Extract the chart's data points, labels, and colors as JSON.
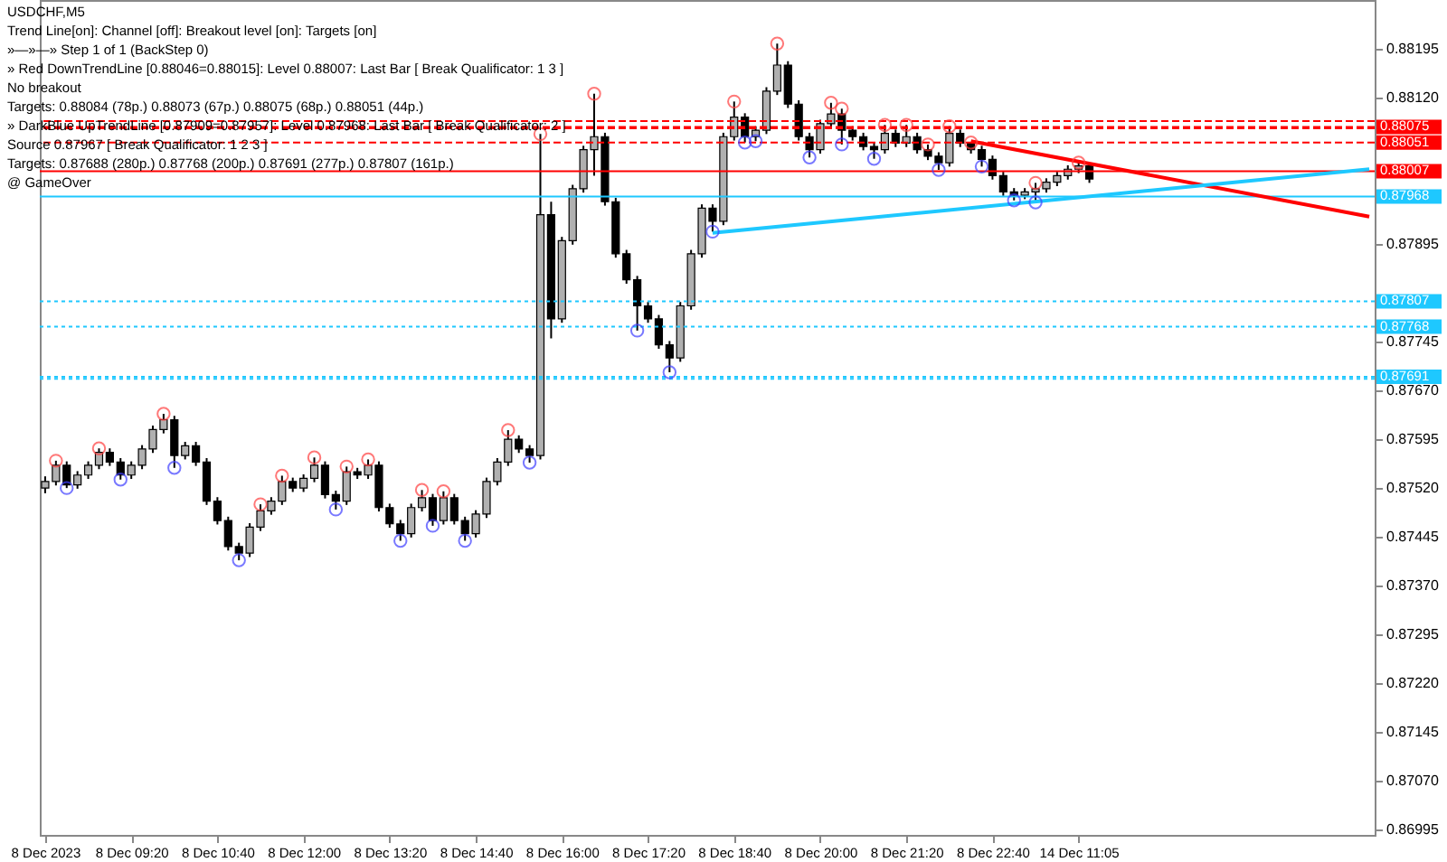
{
  "chart_data": {
    "type": "candlestick",
    "title": "USDCHF,M5",
    "annotations": [
      "Trend Line[on]: Channel [off]: Breakout level [on]: Targets [on]",
      "»—»—» Step 1 of 1 (BackStep 0)",
      "» Red DownTrendLine [0.88046=0.88015]: Level 0.88007: Last Bar [ Break Qualificator: 1 3 ]",
      "No breakout",
      "Targets: 0.88084 (78p.) 0.88073 (67p.) 0.88075 (68p.) 0.88051 (44p.)",
      "» DarkBlue UpTrendLine [0.87909=0.87957]: Level 0.87968: Last Bar [ Break Qualificator: 2 ]",
      "Source 0.87967 [ Break Qualificator: 1 2 3 ]",
      "Targets: 0.87688 (280p.) 0.87768 (200p.) 0.87691 (277p.) 0.87807 (161p.)",
      "@ GameOver"
    ],
    "categories": [
      "8 Dec 2023",
      null,
      null,
      null,
      null,
      null,
      null,
      null,
      "8 Dec 09:20",
      null,
      null,
      null,
      null,
      null,
      null,
      null,
      "8 Dec 10:40",
      null,
      null,
      null,
      null,
      null,
      null,
      null,
      "8 Dec 12:00",
      null,
      null,
      null,
      null,
      null,
      null,
      null,
      "8 Dec 13:20",
      null,
      null,
      null,
      null,
      null,
      null,
      null,
      "8 Dec 14:40",
      null,
      null,
      null,
      null,
      null,
      null,
      null,
      "8 Dec 16:00",
      null,
      null,
      null,
      null,
      null,
      null,
      null,
      "8 Dec 17:20",
      null,
      null,
      null,
      null,
      null,
      null,
      null,
      "8 Dec 18:40",
      null,
      null,
      null,
      null,
      null,
      null,
      null,
      "8 Dec 20:00",
      null,
      null,
      null,
      null,
      null,
      null,
      null,
      "8 Dec 21:20",
      null,
      null,
      null,
      null,
      null,
      null,
      null,
      "8 Dec 22:40",
      null,
      null,
      null,
      null,
      null,
      null,
      null,
      "14 Dec 11:05",
      null,
      null,
      null,
      null,
      null,
      null,
      null,
      null,
      null,
      null,
      null,
      null,
      null,
      null,
      null,
      null,
      null,
      null,
      null,
      null,
      null,
      null,
      null,
      null,
      null,
      null,
      null
    ],
    "ohlc": [
      [
        0.8752,
        0.87538,
        0.87512,
        0.8753
      ],
      [
        0.8753,
        0.87562,
        0.87524,
        0.87555
      ],
      [
        0.87555,
        0.87561,
        0.8752,
        0.87525
      ],
      [
        0.87525,
        0.87546,
        0.87519,
        0.8754
      ],
      [
        0.8754,
        0.87561,
        0.87534,
        0.87555
      ],
      [
        0.87555,
        0.87581,
        0.87549,
        0.87575
      ],
      [
        0.87575,
        0.87581,
        0.87554,
        0.8756
      ],
      [
        0.8756,
        0.87566,
        0.87533,
        0.8754
      ],
      [
        0.8754,
        0.87561,
        0.87534,
        0.87555
      ],
      [
        0.87555,
        0.87586,
        0.87549,
        0.8758
      ],
      [
        0.8758,
        0.87616,
        0.87574,
        0.8761
      ],
      [
        0.8761,
        0.87634,
        0.87604,
        0.87625
      ],
      [
        0.87625,
        0.87631,
        0.87551,
        0.8757
      ],
      [
        0.8757,
        0.87591,
        0.87564,
        0.87585
      ],
      [
        0.87585,
        0.87591,
        0.87554,
        0.8756
      ],
      [
        0.8756,
        0.87566,
        0.87494,
        0.875
      ],
      [
        0.875,
        0.87506,
        0.87464,
        0.8747
      ],
      [
        0.8747,
        0.87476,
        0.87424,
        0.8743
      ],
      [
        0.8743,
        0.87436,
        0.87409,
        0.8742
      ],
      [
        0.8742,
        0.87466,
        0.87414,
        0.8746
      ],
      [
        0.8746,
        0.87495,
        0.87454,
        0.87485
      ],
      [
        0.87485,
        0.87506,
        0.87479,
        0.875
      ],
      [
        0.875,
        0.87539,
        0.87494,
        0.8753
      ],
      [
        0.8753,
        0.87536,
        0.87514,
        0.8752
      ],
      [
        0.8752,
        0.87541,
        0.87514,
        0.87535
      ],
      [
        0.87535,
        0.87567,
        0.87529,
        0.87555
      ],
      [
        0.87555,
        0.87561,
        0.87504,
        0.8751
      ],
      [
        0.8751,
        0.87516,
        0.87487,
        0.875
      ],
      [
        0.875,
        0.87553,
        0.87494,
        0.87545
      ],
      [
        0.87545,
        0.87551,
        0.87534,
        0.8754
      ],
      [
        0.8754,
        0.87564,
        0.87534,
        0.87555
      ],
      [
        0.87555,
        0.87561,
        0.87484,
        0.8749
      ],
      [
        0.8749,
        0.87496,
        0.87459,
        0.87465
      ],
      [
        0.87465,
        0.87471,
        0.87439,
        0.8745
      ],
      [
        0.8745,
        0.87496,
        0.87444,
        0.8749
      ],
      [
        0.8749,
        0.87517,
        0.87484,
        0.87505
      ],
      [
        0.87505,
        0.87511,
        0.87462,
        0.8747
      ],
      [
        0.8747,
        0.87515,
        0.87464,
        0.87505
      ],
      [
        0.87505,
        0.87511,
        0.87464,
        0.8747
      ],
      [
        0.8747,
        0.87476,
        0.87439,
        0.8745
      ],
      [
        0.8745,
        0.87486,
        0.87444,
        0.8748
      ],
      [
        0.8748,
        0.87536,
        0.87474,
        0.8753
      ],
      [
        0.8753,
        0.87566,
        0.87524,
        0.8756
      ],
      [
        0.8756,
        0.87609,
        0.87554,
        0.87595
      ],
      [
        0.87595,
        0.87601,
        0.87574,
        0.8758
      ],
      [
        0.8758,
        0.87586,
        0.87559,
        0.8757
      ],
      [
        0.8757,
        0.88064,
        0.87564,
        0.8794
      ],
      [
        0.8794,
        0.8796,
        0.8775,
        0.8778
      ],
      [
        0.8778,
        0.87906,
        0.87774,
        0.879
      ],
      [
        0.879,
        0.87986,
        0.87894,
        0.8798
      ],
      [
        0.8798,
        0.88046,
        0.87974,
        0.8804
      ],
      [
        0.8804,
        0.88126,
        0.88,
        0.8806
      ],
      [
        0.8806,
        0.88066,
        0.87954,
        0.8796
      ],
      [
        0.8796,
        0.87966,
        0.87874,
        0.8788
      ],
      [
        0.8788,
        0.87886,
        0.87834,
        0.8784
      ],
      [
        0.8784,
        0.87846,
        0.87762,
        0.878
      ],
      [
        0.878,
        0.87806,
        0.87774,
        0.8778
      ],
      [
        0.8778,
        0.87786,
        0.87734,
        0.8774
      ],
      [
        0.8774,
        0.87746,
        0.87698,
        0.8772
      ],
      [
        0.8772,
        0.87806,
        0.87714,
        0.878
      ],
      [
        0.878,
        0.87886,
        0.87794,
        0.8788
      ],
      [
        0.8788,
        0.87956,
        0.87874,
        0.8795
      ],
      [
        0.8795,
        0.87956,
        0.87914,
        0.8793
      ],
      [
        0.8793,
        0.88066,
        0.87924,
        0.8806
      ],
      [
        0.8806,
        0.88114,
        0.88054,
        0.8809
      ],
      [
        0.8809,
        0.88096,
        0.88051,
        0.8806
      ],
      [
        0.8806,
        0.88076,
        0.88053,
        0.8807
      ],
      [
        0.8807,
        0.88136,
        0.88064,
        0.8813
      ],
      [
        0.8813,
        0.88203,
        0.88124,
        0.8817
      ],
      [
        0.8817,
        0.88176,
        0.88104,
        0.8811
      ],
      [
        0.8811,
        0.88116,
        0.88054,
        0.8806
      ],
      [
        0.8806,
        0.88066,
        0.88028,
        0.8804
      ],
      [
        0.8804,
        0.88086,
        0.88034,
        0.8808
      ],
      [
        0.8808,
        0.88112,
        0.88074,
        0.88095
      ],
      [
        0.88095,
        0.88103,
        0.88048,
        0.8807
      ],
      [
        0.8807,
        0.88076,
        0.88054,
        0.8806
      ],
      [
        0.8806,
        0.88066,
        0.88039,
        0.88045
      ],
      [
        0.88045,
        0.88051,
        0.88026,
        0.8804
      ],
      [
        0.8804,
        0.88078,
        0.88034,
        0.88065
      ],
      [
        0.88065,
        0.88071,
        0.88044,
        0.8805
      ],
      [
        0.8805,
        0.88078,
        0.88044,
        0.8806
      ],
      [
        0.8806,
        0.88066,
        0.88034,
        0.8804
      ],
      [
        0.8804,
        0.88048,
        0.88024,
        0.8803
      ],
      [
        0.8803,
        0.88036,
        0.88009,
        0.8802
      ],
      [
        0.8802,
        0.88076,
        0.88014,
        0.88065
      ],
      [
        0.88065,
        0.88071,
        0.88044,
        0.8805
      ],
      [
        0.8805,
        0.88051,
        0.88034,
        0.8804
      ],
      [
        0.8804,
        0.88046,
        0.88014,
        0.88025
      ],
      [
        0.88025,
        0.88031,
        0.87994,
        0.88
      ],
      [
        0.88,
        0.88006,
        0.87969,
        0.87975
      ],
      [
        0.87975,
        0.87981,
        0.87962,
        0.8797
      ],
      [
        0.8797,
        0.87981,
        0.87964,
        0.87975
      ],
      [
        0.87975,
        0.87989,
        0.87959,
        0.8798
      ],
      [
        0.8798,
        0.87996,
        0.87974,
        0.8799
      ],
      [
        0.8799,
        0.88006,
        0.87984,
        0.88
      ],
      [
        0.88,
        0.88016,
        0.87994,
        0.8801
      ],
      [
        0.8801,
        0.8802,
        0.88004,
        0.88015
      ],
      [
        0.88015,
        0.88016,
        0.87989,
        0.87995
      ],
      null,
      null,
      null,
      null,
      null,
      null,
      null,
      null,
      null,
      null,
      null,
      null,
      null,
      null,
      null,
      null,
      null,
      null,
      null,
      null,
      null,
      null,
      null,
      null,
      null,
      null
    ],
    "ylim": [
      0.86987,
      0.8827
    ],
    "yticks": [
      0.88195,
      {
        "value": 0.8812,
        "label": "0.88120"
      },
      0.87895,
      0.87745,
      {
        "value": 0.8767,
        "label": "0.87670"
      },
      0.87595,
      {
        "value": 0.8752,
        "label": "0.87520"
      },
      0.87445,
      {
        "value": 0.8737,
        "label": "0.87370"
      },
      0.87295,
      {
        "value": 0.8722,
        "label": "0.87220"
      },
      0.87145,
      {
        "value": 0.8707,
        "label": "0.87070"
      },
      0.86995
    ],
    "ref_lines": [
      {
        "axis": "y",
        "value": 0.88084,
        "label": null,
        "color": "#ff0000",
        "line_style": "dashed"
      },
      {
        "axis": "y",
        "value": 0.88073,
        "label": null,
        "color": "#ff0000",
        "line_style": "dashed"
      },
      {
        "axis": "y",
        "value": 0.88075,
        "label": "0.88075",
        "color": "#ff0000",
        "line_style": "dashed"
      },
      {
        "axis": "y",
        "value": 0.88051,
        "label": "0.88051",
        "color": "#ff0000",
        "line_style": "dashed"
      },
      {
        "axis": "y",
        "value": 0.88007,
        "label": "0.88007",
        "color": "#ff0000",
        "line_style": "solid"
      },
      {
        "axis": "y",
        "value": 0.87968,
        "label": "0.87968",
        "color": "#1ec8ff",
        "line_style": "solid"
      },
      {
        "axis": "y",
        "value": 0.87807,
        "label": "0.87807",
        "color": "#1ec8ff",
        "line_style": "dotted"
      },
      {
        "axis": "y",
        "value": 0.87768,
        "label": "0.87768",
        "color": "#1ec8ff",
        "line_style": "dotted"
      },
      {
        "axis": "y",
        "value": 0.87691,
        "label": "0.87691",
        "color": "#1ec8ff",
        "line_style": "dotted"
      },
      {
        "axis": "y",
        "value": 0.87688,
        "label": null,
        "color": "#1ec8ff",
        "line_style": "dotted"
      }
    ],
    "series": [
      {
        "type": "line",
        "color": "#ff0000",
        "values": [
          null,
          null,
          null,
          null,
          null,
          null,
          null,
          null,
          null,
          null,
          null,
          null,
          null,
          null,
          null,
          null,
          null,
          null,
          null,
          null,
          null,
          null,
          null,
          null,
          null,
          null,
          null,
          null,
          null,
          null,
          null,
          null,
          null,
          null,
          null,
          null,
          null,
          null,
          null,
          null,
          null,
          null,
          null,
          null,
          null,
          null,
          null,
          null,
          null,
          null,
          null,
          null,
          null,
          null,
          null,
          null,
          null,
          null,
          null,
          null,
          null,
          null,
          null,
          null,
          null,
          null,
          null,
          null,
          null,
          null,
          null,
          null,
          null,
          null,
          null,
          null,
          null,
          null,
          null,
          null,
          null,
          null,
          null,
          null,
          null,
          null,
          0.88053,
          null,
          null,
          null,
          null,
          null,
          null,
          null,
          null,
          null,
          null,
          null,
          null,
          null,
          null,
          null,
          null,
          null,
          null,
          null,
          null,
          null,
          null,
          null,
          null,
          null,
          null,
          null,
          null,
          null,
          null,
          null,
          null,
          null,
          null,
          null,
          null,
          0.87937
        ]
      },
      {
        "type": "line",
        "color": "#1ec8ff",
        "values": [
          null,
          null,
          null,
          null,
          null,
          null,
          null,
          null,
          null,
          null,
          null,
          null,
          null,
          null,
          null,
          null,
          null,
          null,
          null,
          null,
          null,
          null,
          null,
          null,
          null,
          null,
          null,
          null,
          null,
          null,
          null,
          null,
          null,
          null,
          null,
          null,
          null,
          null,
          null,
          null,
          null,
          null,
          null,
          null,
          null,
          null,
          null,
          null,
          null,
          null,
          null,
          null,
          null,
          null,
          null,
          null,
          null,
          null,
          null,
          null,
          null,
          null,
          0.87912,
          null,
          null,
          null,
          null,
          null,
          null,
          null,
          null,
          null,
          null,
          null,
          null,
          null,
          null,
          null,
          null,
          null,
          null,
          null,
          null,
          null,
          null,
          null,
          null,
          null,
          null,
          null,
          null,
          null,
          null,
          null,
          null,
          null,
          null,
          null,
          null,
          null,
          null,
          null,
          null,
          null,
          null,
          null,
          null,
          null,
          null,
          null,
          null,
          null,
          null,
          null,
          null,
          null,
          null,
          null,
          null,
          null,
          null,
          null,
          null,
          0.8801
        ]
      },
      {
        "type": "scatter",
        "marker": "circle",
        "color": "#ff4040",
        "values": [
          null,
          0.87562,
          null,
          null,
          null,
          0.87581,
          null,
          null,
          null,
          null,
          null,
          0.87634,
          null,
          null,
          null,
          null,
          null,
          null,
          null,
          null,
          0.87495,
          null,
          0.87539,
          null,
          null,
          0.87567,
          null,
          null,
          0.87553,
          null,
          0.87564,
          null,
          null,
          null,
          null,
          0.87517,
          null,
          0.87515,
          null,
          null,
          null,
          null,
          null,
          0.87609,
          null,
          null,
          0.88064,
          null,
          null,
          null,
          null,
          0.88126,
          null,
          null,
          null,
          null,
          null,
          null,
          null,
          null,
          null,
          null,
          null,
          null,
          0.88114,
          null,
          null,
          null,
          0.88203,
          null,
          null,
          null,
          null,
          0.88112,
          0.88103,
          null,
          null,
          null,
          0.88078,
          null,
          0.88078,
          null,
          0.88048,
          null,
          0.88076,
          null,
          0.88051,
          null,
          null,
          null,
          null,
          null,
          0.87989,
          null,
          null,
          null,
          0.8802,
          null,
          null,
          null,
          null,
          null,
          null,
          null,
          null,
          null,
          null,
          null,
          null,
          null,
          null,
          null,
          null,
          null,
          null,
          null,
          null,
          null,
          null,
          null,
          null,
          null,
          null,
          null
        ]
      },
      {
        "type": "scatter",
        "marker": "circle",
        "color": "#4040ff",
        "values": [
          null,
          null,
          0.8752,
          null,
          null,
          null,
          null,
          0.87533,
          null,
          null,
          null,
          null,
          0.87551,
          null,
          null,
          null,
          null,
          null,
          0.87409,
          null,
          null,
          null,
          null,
          null,
          null,
          null,
          null,
          0.87487,
          null,
          null,
          null,
          null,
          null,
          0.87439,
          null,
          null,
          0.87462,
          null,
          null,
          0.87439,
          null,
          null,
          null,
          null,
          null,
          0.87559,
          null,
          null,
          null,
          null,
          null,
          null,
          null,
          null,
          null,
          0.87762,
          null,
          null,
          0.87698,
          null,
          null,
          null,
          0.87914,
          null,
          null,
          0.88051,
          0.88053,
          null,
          null,
          null,
          null,
          0.88028,
          null,
          null,
          0.88048,
          null,
          null,
          0.88026,
          null,
          null,
          null,
          null,
          null,
          0.88009,
          null,
          null,
          null,
          0.88014,
          null,
          null,
          0.87962,
          null,
          0.87959,
          null,
          null,
          null,
          null,
          null,
          null,
          null,
          null,
          null,
          null,
          null,
          null,
          null,
          null,
          null,
          null,
          null,
          null,
          null,
          null,
          null,
          null,
          null,
          null,
          null,
          null,
          null,
          null,
          null,
          null,
          null
        ]
      }
    ],
    "grid": false
  }
}
